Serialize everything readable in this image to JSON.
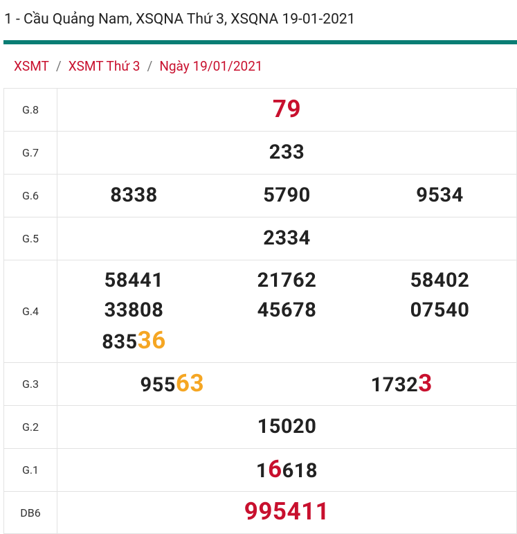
{
  "header": {
    "title": "1 - Cầu Quảng Nam, XSQNA Thứ 3, XSQNA 19-01-2021"
  },
  "breadcrumb": {
    "separator": "/",
    "items": [
      "XSMT",
      "XSMT Thứ 3",
      "Ngày 19/01/2021"
    ]
  },
  "table": {
    "rows": [
      {
        "label": "G.8",
        "numbers": [
          [
            {
              "text": "79",
              "color": "#c8102e"
            }
          ]
        ]
      },
      {
        "label": "G.7",
        "numbers": [
          [
            {
              "text": "233"
            }
          ]
        ]
      },
      {
        "label": "G.6",
        "numbers": [
          [
            {
              "text": "8338"
            }
          ],
          [
            {
              "text": "5790"
            }
          ],
          [
            {
              "text": "9534"
            }
          ]
        ]
      },
      {
        "label": "G.5",
        "numbers": [
          [
            {
              "text": "2334"
            }
          ]
        ]
      },
      {
        "label": "G.4",
        "numbers": [
          [
            {
              "text": "58441"
            }
          ],
          [
            {
              "text": "21762"
            }
          ],
          [
            {
              "text": "58402"
            }
          ],
          [
            {
              "text": "33808"
            }
          ],
          [
            {
              "text": "45678"
            }
          ],
          [
            {
              "text": "07540"
            }
          ],
          [
            {
              "text": "835"
            },
            {
              "text": "36",
              "color": "#f5a623"
            }
          ]
        ]
      },
      {
        "label": "G.3",
        "numbers": [
          [
            {
              "text": "955"
            },
            {
              "text": "63",
              "color": "#f5a623"
            }
          ],
          [
            {
              "text": "1732"
            },
            {
              "text": "3",
              "color": "#c8102e"
            }
          ]
        ]
      },
      {
        "label": "G.2",
        "numbers": [
          [
            {
              "text": "15020"
            }
          ]
        ]
      },
      {
        "label": "G.1",
        "numbers": [
          [
            {
              "text": "1"
            },
            {
              "text": "6",
              "color": "#c8102e"
            },
            {
              "text": "618"
            }
          ]
        ]
      },
      {
        "label": "DB6",
        "numbers": [
          [
            {
              "text": "995411",
              "color": "#c8102e"
            }
          ]
        ]
      }
    ]
  }
}
